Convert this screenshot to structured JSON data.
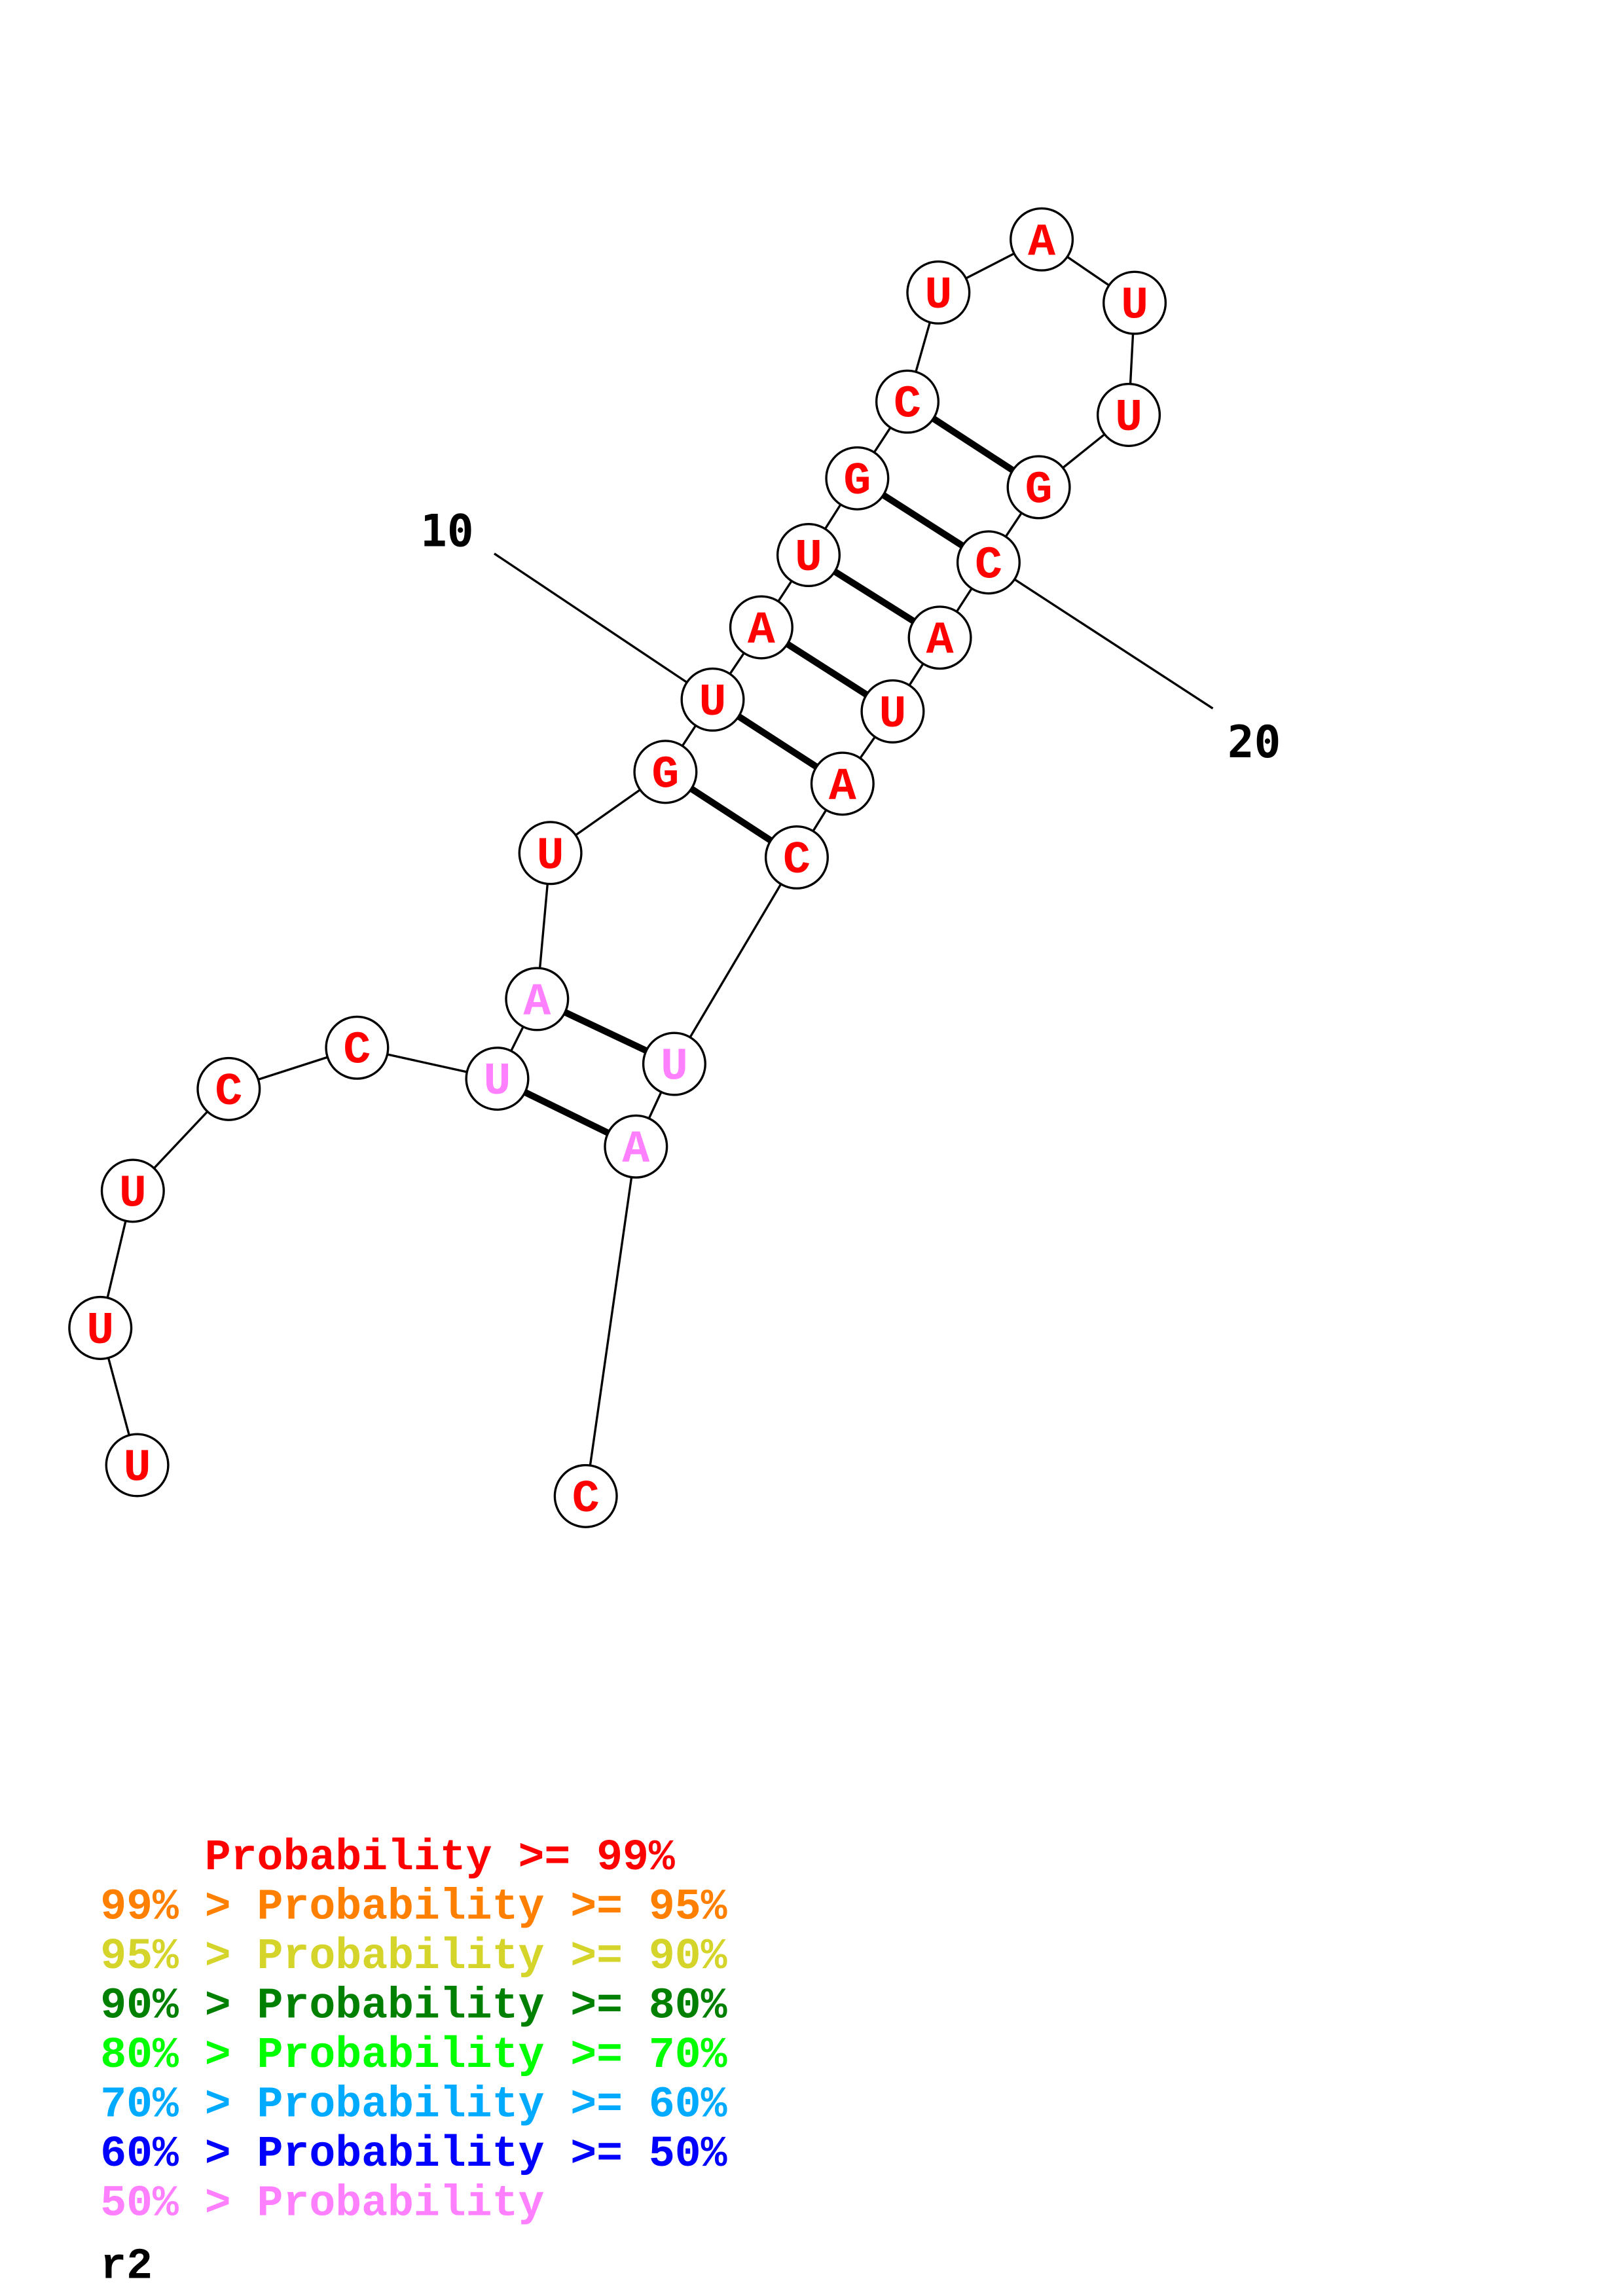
{
  "structure": {
    "name": "r2",
    "sequence": [
      "U",
      "U",
      "U",
      "C",
      "C",
      "U",
      "A",
      "U",
      "G",
      "U",
      "A",
      "U",
      "G",
      "C",
      "U",
      "A",
      "U",
      "U",
      "G",
      "C",
      "A",
      "U",
      "A",
      "C",
      "U",
      "A",
      "C"
    ],
    "base_probability_class": [
      "red",
      "red",
      "red",
      "red",
      "red",
      "pink",
      "pink",
      "red",
      "red",
      "red",
      "red",
      "red",
      "red",
      "red",
      "red",
      "red",
      "red",
      "red",
      "red",
      "red",
      "red",
      "red",
      "red",
      "red",
      "pink",
      "pink",
      "red"
    ],
    "pairs": [
      [
        14,
        19
      ],
      [
        13,
        20
      ],
      [
        12,
        21
      ],
      [
        11,
        22
      ],
      [
        10,
        23
      ],
      [
        9,
        24
      ],
      [
        7,
        25
      ],
      [
        6,
        26
      ]
    ],
    "position_labels": [
      {
        "index": 10,
        "text": "10"
      },
      {
        "index": 20,
        "text": "20"
      }
    ]
  },
  "colors": {
    "red": "#ff0000",
    "orange": "#ff8000",
    "yellow": "#d4d42a",
    "darkgreen": "#008000",
    "green": "#00ff00",
    "lightblue": "#00aaff",
    "blue": "#0000ff",
    "pink": "#ff80ff"
  },
  "legend": [
    {
      "text": "    Probability >= 99%",
      "color": "red"
    },
    {
      "text": "99% > Probability >= 95%",
      "color": "orange"
    },
    {
      "text": "95% > Probability >= 90%",
      "color": "yellow"
    },
    {
      "text": "90% > Probability >= 80%",
      "color": "darkgreen"
    },
    {
      "text": "80% > Probability >= 70%",
      "color": "green"
    },
    {
      "text": "70% > Probability >= 60%",
      "color": "lightblue"
    },
    {
      "text": "60% > Probability >= 50%",
      "color": "blue"
    },
    {
      "text": "50% > Probability",
      "color": "pink"
    }
  ],
  "title": "r2"
}
